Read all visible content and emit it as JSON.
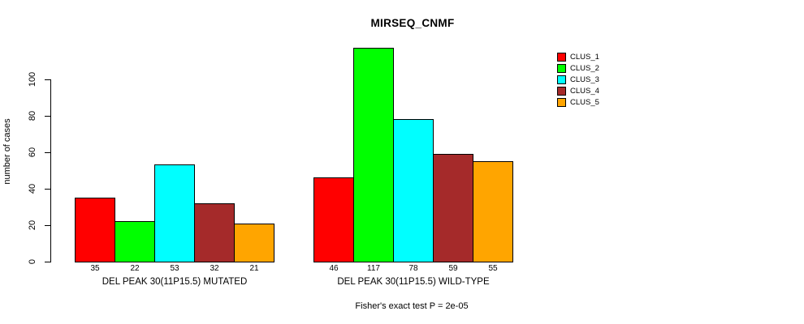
{
  "chart_data": {
    "type": "bar",
    "title": "MIRSEQ_CNMF",
    "xlabel": "",
    "ylabel": "number of cases",
    "ylim": [
      0,
      117
    ],
    "y_ticks": [
      0,
      20,
      40,
      60,
      80,
      100
    ],
    "grid": false,
    "legend_position": "right",
    "legend_entries": [
      {
        "label": "CLUS_1",
        "color": "#FF0000"
      },
      {
        "label": "CLUS_2",
        "color": "#00FF00"
      },
      {
        "label": "CLUS_3",
        "color": "#00FFFF"
      },
      {
        "label": "CLUS_4",
        "color": "#A52A2A"
      },
      {
        "label": "CLUS_5",
        "color": "#FFA500"
      }
    ],
    "groups": [
      {
        "label": "DEL PEAK 30(11P15.5) MUTATED",
        "values": [
          35,
          22,
          53,
          32,
          21
        ]
      },
      {
        "label": "DEL PEAK 30(11P15.5) WILD-TYPE",
        "values": [
          46,
          117,
          78,
          59,
          55
        ]
      }
    ],
    "value_labels_shown": true,
    "annotation": "Fisher's exact test P = 2e-05"
  }
}
